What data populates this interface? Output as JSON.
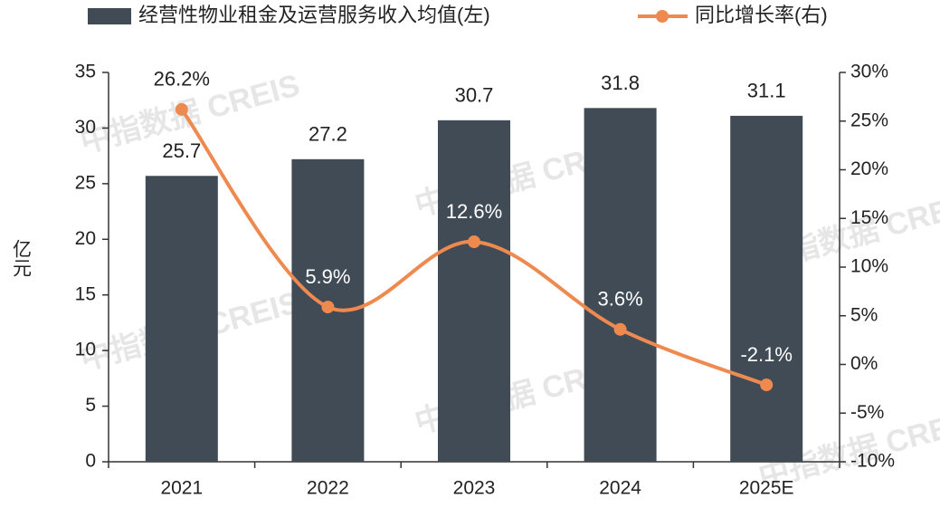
{
  "chart_data": {
    "type": "bar",
    "categories": [
      "2021",
      "2022",
      "2023",
      "2024",
      "2025E"
    ],
    "y_label": "亿元",
    "watermark": "中指数据 CREIS",
    "series": [
      {
        "name": "经营性物业租金及运营服务收入均值(左)",
        "type": "bar",
        "color": "#414b56",
        "values": [
          25.7,
          27.2,
          30.7,
          31.8,
          31.1
        ]
      },
      {
        "name": "同比增长率(右)",
        "type": "line",
        "axis": "y2",
        "color": "#ee8a4f",
        "values": [
          26.2,
          5.9,
          12.6,
          3.6,
          -2.1
        ],
        "value_labels": [
          "26.2%",
          "5.9%",
          "12.6%",
          "3.6%",
          "-2.1%"
        ]
      }
    ],
    "ylim": [
      0,
      35
    ],
    "yticks": [
      0,
      5,
      10,
      15,
      20,
      25,
      30,
      35
    ],
    "y2lim": [
      -10,
      30
    ],
    "y2ticks": [
      {
        "value": -10,
        "label": "-10%"
      },
      {
        "value": -5,
        "label": "-5%"
      },
      {
        "value": 0,
        "label": "0%"
      },
      {
        "value": 5,
        "label": "5%"
      },
      {
        "value": 10,
        "label": "10%"
      },
      {
        "value": 15,
        "label": "15%"
      },
      {
        "value": 20,
        "label": "20%"
      },
      {
        "value": 25,
        "label": "25%"
      },
      {
        "value": 30,
        "label": "30%"
      }
    ],
    "grid": false
  }
}
